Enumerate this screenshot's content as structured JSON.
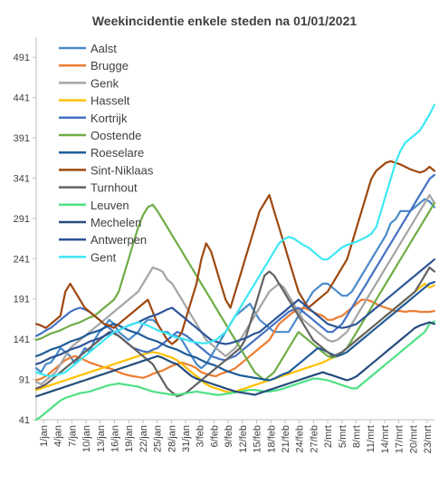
{
  "chart_data": {
    "type": "line",
    "title": "Weekincidentie  enkele steden na 01/01/2021",
    "xlabel": "",
    "ylabel": "",
    "x_labels": [
      "1/jan",
      "4/jan",
      "7/jan",
      "10/jan",
      "13/jan",
      "16/jan",
      "19/jan",
      "22/jan",
      "25/jan",
      "28/jan",
      "31/jan",
      "3/feb",
      "6/feb",
      "9/feb",
      "12/feb",
      "15/feb",
      "18/feb",
      "21/feb",
      "24/feb",
      "27/feb",
      "2/mrt",
      "5/mrt",
      "8/mrt",
      "11/mrt",
      "14/mrt",
      "17/mrt",
      "20/mrt",
      "23/mrt"
    ],
    "y_ticks": [
      41,
      91,
      141,
      191,
      241,
      291,
      341,
      391,
      441,
      491
    ],
    "ylim": [
      41,
      516
    ],
    "grid": false,
    "legend_position": "top-left (inside plot)",
    "series": [
      {
        "name": "Aalst",
        "color": "#4A8AC9",
        "values": [
          105,
          100,
          110,
          112,
          120,
          130,
          125,
          120,
          110,
          120,
          130,
          125,
          140,
          150,
          155,
          165,
          160,
          150,
          145,
          140,
          145,
          150,
          160,
          165,
          165,
          160,
          150,
          150,
          145,
          145,
          140,
          130,
          120,
          110,
          105,
          110,
          120,
          130,
          140,
          150,
          160,
          170,
          175,
          180,
          185,
          175,
          165,
          160,
          155,
          150,
          150,
          150,
          150,
          160,
          170,
          180,
          190,
          200,
          205,
          210,
          210,
          205,
          200,
          195,
          195,
          200,
          210,
          220,
          230,
          240,
          250,
          260,
          270,
          285,
          290,
          300,
          300,
          300,
          305,
          310,
          315,
          312,
          305
        ]
      },
      {
        "name": "Brugge",
        "color": "#ED7D31",
        "values": [
          90,
          92,
          95,
          100,
          105,
          110,
          115,
          118,
          120,
          118,
          115,
          112,
          110,
          108,
          106,
          105,
          103,
          100,
          98,
          96,
          95,
          94,
          93,
          95,
          98,
          100,
          102,
          105,
          108,
          110,
          112,
          110,
          108,
          105,
          100,
          98,
          96,
          95,
          98,
          100,
          102,
          105,
          110,
          115,
          120,
          125,
          130,
          135,
          140,
          150,
          160,
          165,
          170,
          175,
          178,
          180,
          178,
          175,
          172,
          170,
          165,
          165,
          168,
          170,
          175,
          180,
          185,
          190,
          190,
          188,
          185,
          182,
          180,
          178,
          176,
          176,
          175,
          176,
          176,
          175,
          175,
          175,
          176
        ]
      },
      {
        "name": "Genk",
        "color": "#A5A5A5",
        "values": [
          88,
          85,
          90,
          95,
          100,
          110,
          120,
          130,
          135,
          140,
          145,
          150,
          155,
          160,
          165,
          170,
          175,
          180,
          185,
          190,
          195,
          200,
          210,
          220,
          230,
          228,
          225,
          215,
          210,
          200,
          190,
          180,
          170,
          160,
          150,
          140,
          135,
          130,
          125,
          120,
          125,
          130,
          140,
          150,
          160,
          170,
          180,
          190,
          200,
          205,
          210,
          205,
          195,
          185,
          175,
          165,
          160,
          155,
          150,
          145,
          140,
          138,
          140,
          145,
          150,
          160,
          170,
          180,
          190,
          200,
          210,
          220,
          230,
          240,
          250,
          260,
          270,
          280,
          290,
          300,
          310,
          320,
          310
        ]
      },
      {
        "name": "Hasselt",
        "color": "#FFC000",
        "values": [
          78,
          80,
          82,
          84,
          86,
          88,
          90,
          92,
          94,
          96,
          98,
          100,
          102,
          104,
          106,
          108,
          110,
          112,
          114,
          116,
          118,
          120,
          122,
          124,
          125,
          124,
          122,
          120,
          118,
          115,
          110,
          105,
          100,
          95,
          90,
          85,
          82,
          80,
          78,
          76,
          75,
          76,
          78,
          80,
          82,
          84,
          86,
          88,
          90,
          92,
          94,
          96,
          98,
          100,
          102,
          104,
          106,
          108,
          110,
          112,
          115,
          118,
          120,
          125,
          130,
          135,
          140,
          145,
          150,
          155,
          160,
          165,
          170,
          175,
          180,
          185,
          190,
          195,
          200,
          205,
          210,
          205,
          208
        ]
      },
      {
        "name": "Kortrijk",
        "color": "#4472C4",
        "values": [
          145,
          148,
          152,
          155,
          160,
          165,
          170,
          175,
          178,
          180,
          178,
          175,
          170,
          165,
          160,
          155,
          150,
          145,
          140,
          135,
          130,
          128,
          126,
          125,
          128,
          130,
          135,
          140,
          145,
          150,
          148,
          145,
          140,
          135,
          130,
          125,
          120,
          118,
          116,
          115,
          118,
          120,
          125,
          130,
          135,
          140,
          145,
          150,
          155,
          160,
          165,
          170,
          175,
          178,
          180,
          175,
          170,
          165,
          160,
          155,
          150,
          150,
          155,
          160,
          170,
          180,
          190,
          200,
          210,
          220,
          230,
          240,
          250,
          260,
          270,
          280,
          290,
          300,
          310,
          320,
          330,
          340,
          345
        ]
      },
      {
        "name": "Oostende",
        "color": "#70AD47",
        "values": [
          140,
          142,
          145,
          148,
          150,
          152,
          155,
          158,
          160,
          162,
          165,
          168,
          170,
          175,
          180,
          185,
          190,
          200,
          220,
          240,
          260,
          280,
          295,
          305,
          308,
          300,
          290,
          280,
          270,
          260,
          250,
          240,
          230,
          220,
          210,
          200,
          190,
          180,
          170,
          160,
          150,
          140,
          130,
          120,
          110,
          100,
          95,
          90,
          95,
          100,
          110,
          120,
          130,
          140,
          150,
          145,
          140,
          135,
          130,
          125,
          120,
          118,
          120,
          125,
          130,
          140,
          150,
          160,
          170,
          180,
          190,
          200,
          210,
          220,
          230,
          240,
          250,
          260,
          270,
          280,
          290,
          300,
          310
        ]
      },
      {
        "name": "Roeselare",
        "color": "#1F5C99",
        "values": [
          120,
          122,
          125,
          128,
          130,
          132,
          135,
          138,
          140,
          142,
          145,
          148,
          150,
          152,
          155,
          158,
          160,
          158,
          155,
          152,
          150,
          148,
          145,
          142,
          140,
          138,
          135,
          132,
          130,
          128,
          125,
          122,
          120,
          118,
          115,
          112,
          110,
          108,
          105,
          102,
          100,
          98,
          96,
          95,
          94,
          93,
          92,
          91,
          90,
          92,
          95,
          98,
          100,
          105,
          110,
          115,
          120,
          125,
          130,
          128,
          125,
          122,
          120,
          122,
          125,
          130,
          135,
          140,
          145,
          150,
          155,
          160,
          165,
          170,
          175,
          180,
          185,
          190,
          195,
          200,
          205,
          210,
          212
        ]
      },
      {
        "name": "Sint-Niklaas",
        "color": "#9E480E",
        "values": [
          160,
          158,
          155,
          160,
          165,
          170,
          200,
          210,
          200,
          190,
          180,
          175,
          170,
          165,
          160,
          158,
          155,
          160,
          165,
          170,
          175,
          180,
          185,
          190,
          175,
          160,
          150,
          140,
          135,
          140,
          150,
          170,
          190,
          210,
          240,
          260,
          250,
          230,
          210,
          190,
          180,
          200,
          220,
          240,
          260,
          280,
          300,
          310,
          320,
          300,
          280,
          260,
          240,
          220,
          200,
          190,
          180,
          185,
          190,
          195,
          200,
          210,
          220,
          230,
          240,
          260,
          280,
          300,
          320,
          340,
          350,
          355,
          360,
          362,
          360,
          358,
          355,
          352,
          350,
          348,
          350,
          355,
          350
        ]
      },
      {
        "name": "Turnhout",
        "color": "#636363",
        "values": [
          80,
          82,
          85,
          90,
          95,
          100,
          105,
          110,
          115,
          120,
          125,
          130,
          135,
          140,
          145,
          150,
          148,
          145,
          140,
          135,
          130,
          125,
          120,
          115,
          110,
          100,
          90,
          80,
          75,
          70,
          72,
          75,
          80,
          85,
          90,
          95,
          100,
          105,
          110,
          115,
          120,
          125,
          130,
          140,
          160,
          180,
          200,
          220,
          225,
          220,
          210,
          200,
          190,
          180,
          170,
          160,
          150,
          140,
          135,
          130,
          125,
          120,
          122,
          125,
          130,
          135,
          140,
          145,
          150,
          155,
          160,
          165,
          170,
          175,
          180,
          185,
          190,
          195,
          200,
          210,
          220,
          230,
          225
        ]
      },
      {
        "name": "Leuven",
        "color": "#4FE085",
        "values": [
          41,
          45,
          50,
          55,
          60,
          65,
          68,
          70,
          72,
          74,
          75,
          76,
          78,
          80,
          82,
          84,
          85,
          86,
          85,
          84,
          83,
          82,
          80,
          78,
          76,
          75,
          74,
          73,
          72,
          72,
          73,
          74,
          75,
          76,
          75,
          74,
          73,
          72,
          72,
          73,
          74,
          75,
          76,
          77,
          78,
          78,
          77,
          76,
          76,
          77,
          78,
          80,
          82,
          84,
          86,
          88,
          90,
          92,
          92,
          91,
          90,
          88,
          86,
          84,
          82,
          80,
          80,
          85,
          90,
          95,
          100,
          105,
          110,
          115,
          120,
          125,
          130,
          135,
          140,
          145,
          150,
          160,
          163
        ]
      },
      {
        "name": "Mechelen",
        "color": "#254D7C",
        "values": [
          70,
          72,
          74,
          76,
          78,
          80,
          82,
          84,
          86,
          88,
          90,
          92,
          94,
          96,
          98,
          100,
          102,
          104,
          106,
          108,
          110,
          112,
          114,
          116,
          118,
          120,
          118,
          115,
          112,
          110,
          105,
          100,
          95,
          92,
          90,
          88,
          86,
          84,
          82,
          80,
          78,
          76,
          75,
          74,
          73,
          72,
          74,
          76,
          78,
          80,
          82,
          84,
          86,
          88,
          90,
          92,
          94,
          96,
          98,
          100,
          98,
          96,
          94,
          92,
          90,
          92,
          95,
          100,
          105,
          110,
          115,
          120,
          125,
          130,
          135,
          140,
          145,
          150,
          155,
          158,
          160,
          162,
          160
        ]
      },
      {
        "name": "Antwerpen",
        "color": "#2E5597",
        "values": [
          110,
          112,
          115,
          118,
          120,
          122,
          125,
          128,
          130,
          132,
          135,
          138,
          140,
          142,
          145,
          148,
          150,
          152,
          155,
          158,
          160,
          162,
          165,
          168,
          170,
          172,
          175,
          178,
          180,
          175,
          170,
          165,
          160,
          155,
          150,
          145,
          140,
          138,
          136,
          135,
          136,
          138,
          140,
          142,
          145,
          148,
          150,
          155,
          160,
          165,
          170,
          175,
          180,
          185,
          190,
          185,
          180,
          175,
          170,
          165,
          160,
          158,
          156,
          155,
          156,
          158,
          160,
          165,
          170,
          175,
          180,
          185,
          190,
          195,
          200,
          205,
          210,
          215,
          220,
          225,
          230,
          235,
          240
        ]
      },
      {
        "name": "Gent",
        "color": "#3DE8F5",
        "values": [
          100,
          98,
          96,
          95,
          96,
          98,
          100,
          105,
          110,
          115,
          120,
          125,
          130,
          135,
          140,
          145,
          150,
          152,
          155,
          158,
          160,
          162,
          160,
          158,
          155,
          152,
          150,
          148,
          145,
          143,
          142,
          140,
          138,
          137,
          136,
          136,
          138,
          140,
          145,
          150,
          160,
          170,
          180,
          190,
          200,
          210,
          220,
          230,
          240,
          250,
          260,
          265,
          268,
          266,
          262,
          258,
          255,
          250,
          245,
          240,
          240,
          245,
          250,
          255,
          258,
          260,
          262,
          265,
          268,
          272,
          280,
          300,
          320,
          340,
          360,
          375,
          385,
          390,
          395,
          400,
          410,
          420,
          432
        ]
      }
    ]
  }
}
